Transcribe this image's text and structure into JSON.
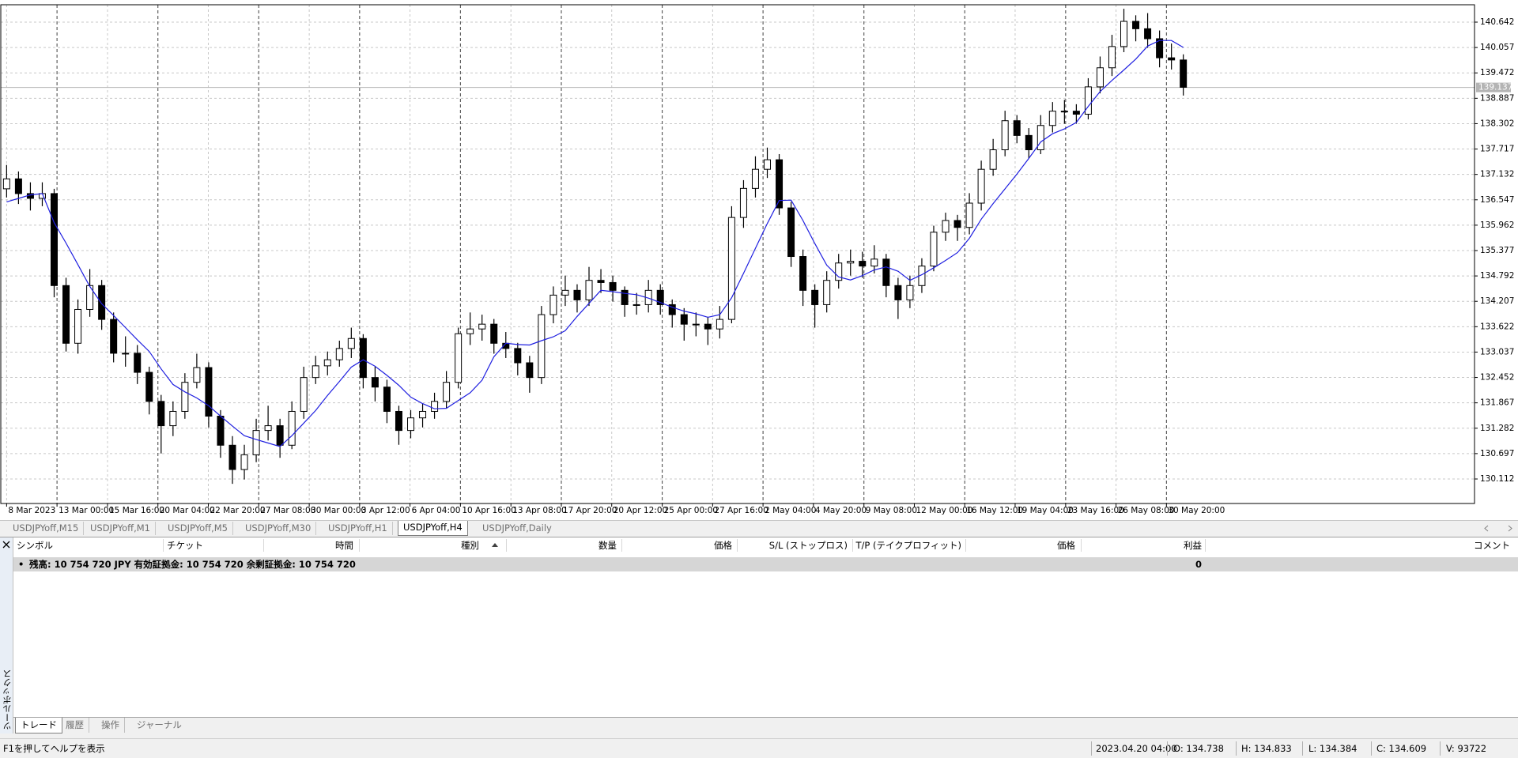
{
  "chart_data": {
    "type": "candlestick",
    "xlim": [
      -0.49,
      123.5
    ],
    "xticks": [
      {
        "value": 0,
        "label": "8 Mar 2023"
      },
      {
        "value": 4.24,
        "label": "13 Mar 00:00"
      },
      {
        "value": 8.49,
        "label": "15 Mar 16:00"
      },
      {
        "value": 12.73,
        "label": "20 Mar 04:00"
      },
      {
        "value": 16.97,
        "label": "22 Mar 20:00"
      },
      {
        "value": 21.21,
        "label": "27 Mar 08:00"
      },
      {
        "value": 25.46,
        "label": "30 Mar 00:00"
      },
      {
        "value": 29.7,
        "label": "3 Apr 12:00"
      },
      {
        "value": 33.94,
        "label": "6 Apr 04:00"
      },
      {
        "value": 38.18,
        "label": "10 Apr 16:00"
      },
      {
        "value": 42.43,
        "label": "13 Apr 08:00"
      },
      {
        "value": 46.67,
        "label": "17 Apr 20:00"
      },
      {
        "value": 50.91,
        "label": "20 Apr 12:00"
      },
      {
        "value": 55.16,
        "label": "25 Apr 00:00"
      },
      {
        "value": 59.4,
        "label": "27 Apr 16:00"
      },
      {
        "value": 63.64,
        "label": "2 May 04:00"
      },
      {
        "value": 67.88,
        "label": "4 May 20:00"
      },
      {
        "value": 72.13,
        "label": "9 May 08:00"
      },
      {
        "value": 76.37,
        "label": "12 May 00:00"
      },
      {
        "value": 80.61,
        "label": "16 May 12:00"
      },
      {
        "value": 84.85,
        "label": "19 May 04:00"
      },
      {
        "value": 89.1,
        "label": "23 May 16:00"
      },
      {
        "value": 93.34,
        "label": "26 May 08:00"
      },
      {
        "value": 97.58,
        "label": "30 May 20:00"
      }
    ],
    "ylim": [
      129.547,
      141.043
    ],
    "yticks": [
      140.642,
      140.057,
      139.472,
      138.887,
      138.302,
      137.717,
      137.132,
      136.547,
      135.962,
      135.377,
      134.792,
      134.207,
      133.622,
      133.037,
      132.452,
      131.867,
      131.282,
      130.697,
      130.112
    ],
    "grid": true,
    "current_price": 139.137,
    "ohlc": [
      [
        136.8,
        137.35,
        136.6,
        137.03
      ],
      [
        137.03,
        137.2,
        136.45,
        136.69
      ],
      [
        136.69,
        136.95,
        136.3,
        136.58
      ],
      [
        136.58,
        136.95,
        136.4,
        136.69
      ],
      [
        136.69,
        136.8,
        134.3,
        134.57
      ],
      [
        134.57,
        134.75,
        133.05,
        133.24
      ],
      [
        133.24,
        134.25,
        133.0,
        134.02
      ],
      [
        134.02,
        134.95,
        133.85,
        134.57
      ],
      [
        134.57,
        134.7,
        133.55,
        133.79
      ],
      [
        133.79,
        133.95,
        132.8,
        133.01
      ],
      [
        133.01,
        133.4,
        132.7,
        133.01
      ],
      [
        133.01,
        133.2,
        132.3,
        132.57
      ],
      [
        132.57,
        132.7,
        131.6,
        131.9
      ],
      [
        131.9,
        132.05,
        130.7,
        131.34
      ],
      [
        131.34,
        131.9,
        131.1,
        131.67
      ],
      [
        131.67,
        132.55,
        131.5,
        132.34
      ],
      [
        132.34,
        133.0,
        132.2,
        132.68
      ],
      [
        132.68,
        132.8,
        131.3,
        131.56
      ],
      [
        131.56,
        131.7,
        130.6,
        130.89
      ],
      [
        130.89,
        131.1,
        130.0,
        130.33
      ],
      [
        130.33,
        130.9,
        130.1,
        130.67
      ],
      [
        130.67,
        131.5,
        130.5,
        131.23
      ],
      [
        131.23,
        131.8,
        131.0,
        131.34
      ],
      [
        131.34,
        131.5,
        130.6,
        130.89
      ],
      [
        130.89,
        131.9,
        130.8,
        131.67
      ],
      [
        131.67,
        132.7,
        131.5,
        132.45
      ],
      [
        132.45,
        132.95,
        132.3,
        132.72
      ],
      [
        132.72,
        133.05,
        132.5,
        132.86
      ],
      [
        132.86,
        133.3,
        132.7,
        133.12
      ],
      [
        133.12,
        133.6,
        132.9,
        133.35
      ],
      [
        133.35,
        133.45,
        132.2,
        132.45
      ],
      [
        132.45,
        132.7,
        131.9,
        132.23
      ],
      [
        132.23,
        132.4,
        131.4,
        131.67
      ],
      [
        131.67,
        131.8,
        130.9,
        131.23
      ],
      [
        131.23,
        131.7,
        131.05,
        131.52
      ],
      [
        131.52,
        131.85,
        131.3,
        131.67
      ],
      [
        131.67,
        132.1,
        131.5,
        131.9
      ],
      [
        131.9,
        132.6,
        131.75,
        132.34
      ],
      [
        132.34,
        133.6,
        132.2,
        133.46
      ],
      [
        133.46,
        133.95,
        133.2,
        133.57
      ],
      [
        133.57,
        133.9,
        133.3,
        133.68
      ],
      [
        133.68,
        133.8,
        133.0,
        133.24
      ],
      [
        133.24,
        133.5,
        132.9,
        133.12
      ],
      [
        133.12,
        133.25,
        132.5,
        132.79
      ],
      [
        132.79,
        132.95,
        132.1,
        132.45
      ],
      [
        132.45,
        134.1,
        132.3,
        133.9
      ],
      [
        133.9,
        134.55,
        133.7,
        134.35
      ],
      [
        134.35,
        134.8,
        134.1,
        134.46
      ],
      [
        134.46,
        134.6,
        133.95,
        134.24
      ],
      [
        134.24,
        135.0,
        134.1,
        134.69
      ],
      [
        134.69,
        134.95,
        134.4,
        134.64
      ],
      [
        134.64,
        134.8,
        134.2,
        134.46
      ],
      [
        134.46,
        134.55,
        133.85,
        134.13
      ],
      [
        134.13,
        134.4,
        133.9,
        134.13
      ],
      [
        134.13,
        134.7,
        133.95,
        134.46
      ],
      [
        134.46,
        134.6,
        133.9,
        134.13
      ],
      [
        134.13,
        134.25,
        133.6,
        133.9
      ],
      [
        133.9,
        134.05,
        133.3,
        133.68
      ],
      [
        133.68,
        133.95,
        133.4,
        133.68
      ],
      [
        133.68,
        133.85,
        133.2,
        133.57
      ],
      [
        133.57,
        134.1,
        133.35,
        133.79
      ],
      [
        133.79,
        136.4,
        133.7,
        136.14
      ],
      [
        136.14,
        137.0,
        135.9,
        136.81
      ],
      [
        136.81,
        137.55,
        136.6,
        137.25
      ],
      [
        137.25,
        137.75,
        137.05,
        137.47
      ],
      [
        137.47,
        137.6,
        136.2,
        136.36
      ],
      [
        136.36,
        136.5,
        135.0,
        135.24
      ],
      [
        135.24,
        135.4,
        134.1,
        134.46
      ],
      [
        134.46,
        134.6,
        133.6,
        134.13
      ],
      [
        134.13,
        134.9,
        133.95,
        134.69
      ],
      [
        134.69,
        135.3,
        134.5,
        135.09
      ],
      [
        135.09,
        135.4,
        134.8,
        135.13
      ],
      [
        135.13,
        135.35,
        134.75,
        135.02
      ],
      [
        135.02,
        135.5,
        134.85,
        135.18
      ],
      [
        135.18,
        135.3,
        134.3,
        134.57
      ],
      [
        134.57,
        134.75,
        133.8,
        134.24
      ],
      [
        134.24,
        134.8,
        134.05,
        134.57
      ],
      [
        134.57,
        135.2,
        134.4,
        135.02
      ],
      [
        135.02,
        135.95,
        134.9,
        135.8
      ],
      [
        135.8,
        136.25,
        135.6,
        136.07
      ],
      [
        136.07,
        136.2,
        135.6,
        135.91
      ],
      [
        135.91,
        136.7,
        135.75,
        136.47
      ],
      [
        136.47,
        137.45,
        136.3,
        137.25
      ],
      [
        137.25,
        137.95,
        137.1,
        137.7
      ],
      [
        137.7,
        138.6,
        137.55,
        138.37
      ],
      [
        138.37,
        138.5,
        137.85,
        138.03
      ],
      [
        138.03,
        138.2,
        137.5,
        137.7
      ],
      [
        137.7,
        138.5,
        137.6,
        138.26
      ],
      [
        138.26,
        138.8,
        138.1,
        138.59
      ],
      [
        138.59,
        138.85,
        138.3,
        138.59
      ],
      [
        138.59,
        138.75,
        138.3,
        138.52
      ],
      [
        138.52,
        139.35,
        138.4,
        139.15
      ],
      [
        139.15,
        139.85,
        139.0,
        139.59
      ],
      [
        139.59,
        140.35,
        139.4,
        140.08
      ],
      [
        140.08,
        140.95,
        139.95,
        140.66
      ],
      [
        140.66,
        140.8,
        140.2,
        140.49
      ],
      [
        140.49,
        140.85,
        140.05,
        140.26
      ],
      [
        140.26,
        140.45,
        139.6,
        139.82
      ],
      [
        139.82,
        140.15,
        139.55,
        139.77
      ],
      [
        139.77,
        139.9,
        138.95,
        139.14
      ]
    ],
    "ma": {
      "color": "#1f1fe0",
      "values": [
        136.5,
        136.58,
        136.66,
        136.69,
        136.02,
        135.55,
        135.05,
        134.55,
        134.15,
        133.88,
        133.6,
        133.32,
        133.05,
        132.65,
        132.29,
        132.12,
        131.98,
        131.8,
        131.56,
        131.33,
        131.11,
        131.02,
        130.94,
        130.86,
        131.11,
        131.4,
        131.69,
        132.04,
        132.36,
        132.69,
        132.86,
        132.71,
        132.5,
        132.27,
        132.0,
        131.85,
        131.73,
        131.74,
        131.92,
        132.1,
        132.39,
        132.93,
        133.24,
        133.21,
        133.2,
        133.3,
        133.39,
        133.53,
        133.86,
        134.16,
        134.46,
        134.43,
        134.39,
        134.36,
        134.28,
        134.18,
        134.07,
        133.98,
        133.92,
        133.84,
        133.9,
        134.29,
        134.85,
        135.43,
        136.0,
        136.53,
        136.54,
        136.07,
        135.54,
        135.04,
        134.77,
        134.7,
        134.8,
        134.93,
        135.0,
        134.9,
        134.69,
        134.82,
        134.98,
        135.15,
        135.33,
        135.66,
        136.1,
        136.46,
        136.8,
        137.14,
        137.5,
        137.88,
        138.07,
        138.18,
        138.33,
        138.7,
        139.04,
        139.3,
        139.54,
        139.79,
        140.09,
        140.22,
        140.22,
        140.06
      ]
    }
  },
  "chart_tabs": [
    "USDJPYoff,M15",
    "USDJPYoff,M1",
    "USDJPYoff,M5",
    "USDJPYoff,M30",
    "USDJPYoff,H1",
    "USDJPYoff,H4",
    "USDJPYoff,Daily"
  ],
  "terminal": {
    "title": "ツールボックス",
    "columns": [
      "シンボル",
      "チケット",
      "時間",
      "種別",
      "数量",
      "価格",
      "S/L (ストップロス)",
      "T/P (テイクプロフィット)",
      "価格",
      "利益",
      "コメント"
    ],
    "balance_row": {
      "text": "残高: 10 754 720 JPY  有効証拠金: 10 754 720  余剰証拠金: 10 754 720",
      "profit": 0
    },
    "tabs": [
      "トレード",
      "履歴",
      "操作",
      "ジャーナル"
    ]
  },
  "status_bar": {
    "help": "F1を押してヘルプを表示",
    "time": "2023.04.20 04:00",
    "open": "O: 134.738",
    "high": "H: 134.833",
    "low": "L: 134.384",
    "close": "C: 134.609",
    "volume": "V: 93722"
  }
}
